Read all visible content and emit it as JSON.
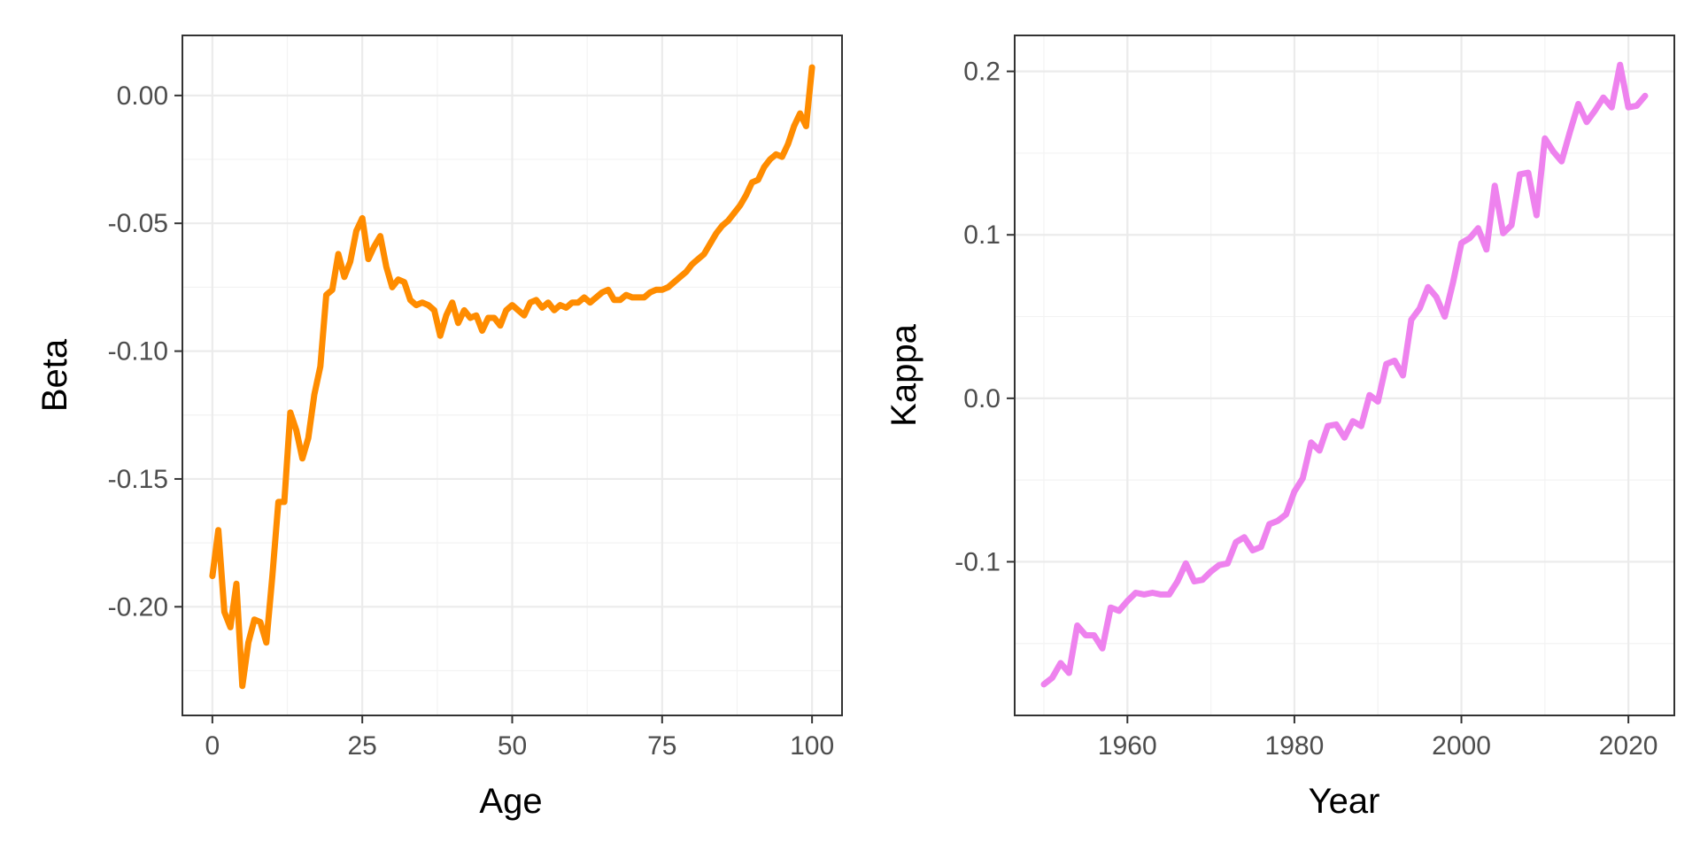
{
  "chart_data": [
    {
      "type": "line",
      "title": "",
      "xlabel": "Age",
      "ylabel": "Beta",
      "xlim": [
        -5,
        105
      ],
      "ylim": [
        -0.2425,
        0.0235
      ],
      "xticks": [
        0,
        25,
        50,
        75,
        100
      ],
      "xtick_labels": [
        "0",
        "25",
        "50",
        "75",
        "100"
      ],
      "yticks": [
        0.0,
        -0.05,
        -0.1,
        -0.15,
        -0.2
      ],
      "ytick_labels": [
        "0.00",
        "-0.05",
        "-0.10",
        "-0.15",
        "-0.20"
      ],
      "grid": true,
      "legend": "none",
      "series": [
        {
          "color": "#ff8c00",
          "x": [
            0,
            1,
            2,
            3,
            4,
            5,
            6,
            7,
            8,
            9,
            10,
            11,
            12,
            13,
            14,
            15,
            16,
            17,
            18,
            19,
            20,
            21,
            22,
            23,
            24,
            25,
            26,
            27,
            28,
            29,
            30,
            31,
            32,
            33,
            34,
            35,
            36,
            37,
            38,
            39,
            40,
            41,
            42,
            43,
            44,
            45,
            46,
            47,
            48,
            49,
            50,
            51,
            52,
            53,
            54,
            55,
            56,
            57,
            58,
            59,
            60,
            61,
            62,
            63,
            64,
            65,
            66,
            67,
            68,
            69,
            70,
            71,
            72,
            73,
            74,
            75,
            76,
            77,
            78,
            79,
            80,
            81,
            82,
            83,
            84,
            85,
            86,
            87,
            88,
            89,
            90,
            91,
            92,
            93,
            94,
            95,
            96,
            97,
            98,
            99,
            100
          ],
          "y": [
            -0.188,
            -0.17,
            -0.202,
            -0.208,
            -0.191,
            -0.231,
            -0.214,
            -0.205,
            -0.206,
            -0.214,
            -0.188,
            -0.159,
            -0.159,
            -0.124,
            -0.131,
            -0.142,
            -0.134,
            -0.117,
            -0.106,
            -0.078,
            -0.076,
            -0.062,
            -0.071,
            -0.065,
            -0.053,
            -0.048,
            -0.064,
            -0.059,
            -0.055,
            -0.067,
            -0.075,
            -0.072,
            -0.073,
            -0.08,
            -0.082,
            -0.081,
            -0.082,
            -0.084,
            -0.094,
            -0.086,
            -0.081,
            -0.089,
            -0.084,
            -0.087,
            -0.086,
            -0.092,
            -0.087,
            -0.087,
            -0.09,
            -0.084,
            -0.082,
            -0.084,
            -0.086,
            -0.081,
            -0.08,
            -0.083,
            -0.081,
            -0.084,
            -0.082,
            -0.083,
            -0.081,
            -0.081,
            -0.079,
            -0.081,
            -0.079,
            -0.077,
            -0.076,
            -0.08,
            -0.08,
            -0.078,
            -0.079,
            -0.079,
            -0.079,
            -0.077,
            -0.076,
            -0.076,
            -0.075,
            -0.073,
            -0.071,
            -0.069,
            -0.066,
            -0.064,
            -0.062,
            -0.058,
            -0.054,
            -0.051,
            -0.049,
            -0.046,
            -0.043,
            -0.039,
            -0.034,
            -0.033,
            -0.028,
            -0.025,
            -0.023,
            -0.024,
            -0.019,
            -0.012,
            -0.007,
            -0.012,
            0.011
          ]
        }
      ]
    },
    {
      "type": "line",
      "title": "",
      "xlabel": "Year",
      "ylabel": "Kappa",
      "xlim": [
        1946.5,
        2025.5
      ],
      "ylim": [
        -0.194,
        0.222
      ],
      "xticks": [
        1960,
        1980,
        2000,
        2020
      ],
      "xtick_labels": [
        "1960",
        "1980",
        "2000",
        "2020"
      ],
      "yticks": [
        0.2,
        0.1,
        0.0,
        -0.1
      ],
      "ytick_labels": [
        "0.2",
        "0.1",
        "0.0",
        "-0.1"
      ],
      "grid": true,
      "legend": "none",
      "series": [
        {
          "color": "#ee82ee",
          "x": [
            1950,
            1951,
            1952,
            1953,
            1954,
            1955,
            1956,
            1957,
            1958,
            1959,
            1960,
            1961,
            1962,
            1963,
            1964,
            1965,
            1966,
            1967,
            1968,
            1969,
            1970,
            1971,
            1972,
            1973,
            1974,
            1975,
            1976,
            1977,
            1978,
            1979,
            1980,
            1981,
            1982,
            1983,
            1984,
            1985,
            1986,
            1987,
            1988,
            1989,
            1990,
            1991,
            1992,
            1993,
            1994,
            1995,
            1996,
            1997,
            1998,
            1999,
            2000,
            2001,
            2002,
            2003,
            2004,
            2005,
            2006,
            2007,
            2008,
            2009,
            2010,
            2011,
            2012,
            2013,
            2014,
            2015,
            2016,
            2017,
            2018,
            2019,
            2020,
            2021,
            2022
          ],
          "y": [
            -0.175,
            -0.171,
            -0.162,
            -0.168,
            -0.139,
            -0.145,
            -0.145,
            -0.153,
            -0.128,
            -0.13,
            -0.124,
            -0.119,
            -0.12,
            -0.119,
            -0.12,
            -0.12,
            -0.112,
            -0.101,
            -0.112,
            -0.111,
            -0.106,
            -0.102,
            -0.101,
            -0.088,
            -0.085,
            -0.093,
            -0.091,
            -0.077,
            -0.075,
            -0.071,
            -0.057,
            -0.049,
            -0.027,
            -0.032,
            -0.017,
            -0.016,
            -0.024,
            -0.014,
            -0.017,
            0.002,
            -0.002,
            0.021,
            0.023,
            0.014,
            0.048,
            0.055,
            0.068,
            0.062,
            0.05,
            0.071,
            0.095,
            0.098,
            0.104,
            0.091,
            0.13,
            0.101,
            0.106,
            0.137,
            0.138,
            0.112,
            0.159,
            0.151,
            0.145,
            0.163,
            0.18,
            0.169,
            0.176,
            0.184,
            0.178,
            0.204,
            0.178,
            0.179,
            0.185
          ]
        }
      ]
    }
  ]
}
